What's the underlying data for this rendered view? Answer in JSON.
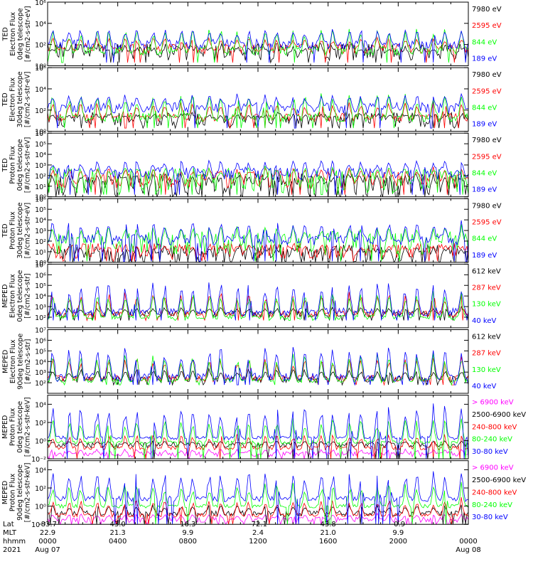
{
  "chart_data": {
    "type": "line",
    "x_range": [
      "0000",
      "0000"
    ],
    "grid": false,
    "legend_placement": "right of each panel",
    "colors": {
      "blue": "#0000ff",
      "red": "#ff0000",
      "green": "#00ff00",
      "black": "#000000",
      "magenta": "#ff00ff"
    },
    "bottom_axis": {
      "row_labels": [
        "Lat",
        "MLT",
        "hhmm",
        "2021"
      ],
      "columns": [
        {
          "Lat": "-83.7",
          "MLT": "22.9",
          "hhmm": "0000",
          "date": "Aug 07"
        },
        {
          "Lat": "43.0",
          "MLT": "21.3",
          "hhmm": "0400",
          "date": ""
        },
        {
          "Lat": "16.3",
          "MLT": "9.9",
          "hhmm": "0800",
          "date": ""
        },
        {
          "Lat": "-72.1",
          "MLT": "2.4",
          "hhmm": "1200",
          "date": ""
        },
        {
          "Lat": "43.8",
          "MLT": "21.0",
          "hhmm": "1600",
          "date": ""
        },
        {
          "Lat": "-0.9",
          "MLT": "9.9",
          "hhmm": "2000",
          "date": ""
        },
        {
          "Lat": "",
          "MLT": "",
          "hhmm": "0000",
          "date": "Aug 08"
        }
      ]
    },
    "panels": [
      {
        "ylabel": [
          "TED",
          "Electron Flux",
          "0deg telescope",
          "[#/cm2-s-str-eV]"
        ],
        "log_range": [
          0,
          6
        ],
        "ticks": [
          {
            "exp": 0,
            "label": "10⁰"
          },
          {
            "exp": 2,
            "label": "10²"
          },
          {
            "exp": 4,
            "label": "10⁴"
          },
          {
            "exp": 6,
            "label": "10⁶"
          }
        ],
        "baseline": 1.5,
        "floor": 0.3,
        "series": [
          {
            "name": "7980 eV",
            "color": "black",
            "base": 1.3,
            "peak": 1.6,
            "spread": 0.8
          },
          {
            "name": "2595 eV",
            "color": "red",
            "base": 1.6,
            "peak": 2.7,
            "spread": 0.5
          },
          {
            "name": "844 eV",
            "color": "green",
            "base": 1.4,
            "peak": 3.6,
            "spread": 0.4
          },
          {
            "name": "189 eV",
            "color": "blue",
            "base": 2.0,
            "peak": 3.6,
            "spread": 0.5
          }
        ]
      },
      {
        "ylabel": [
          "TED",
          "Electron Flux",
          "30deg telescope",
          "[#/cm2-s-str-eV]"
        ],
        "log_range": [
          0,
          6
        ],
        "ticks": [
          {
            "exp": 0,
            "label": "10⁰"
          },
          {
            "exp": 2,
            "label": "10²"
          },
          {
            "exp": 4,
            "label": "10⁴"
          },
          {
            "exp": 6,
            "label": "10⁶"
          }
        ],
        "baseline": 1.2,
        "floor": 0.3,
        "series": [
          {
            "name": "7980 eV",
            "color": "black",
            "base": 1.1,
            "peak": 1.7,
            "spread": 0.7
          },
          {
            "name": "2595 eV",
            "color": "red",
            "base": 1.3,
            "peak": 2.8,
            "spread": 0.4
          },
          {
            "name": "844 eV",
            "color": "green",
            "base": 1.3,
            "peak": 3.6,
            "spread": 0.4
          },
          {
            "name": "189 eV",
            "color": "blue",
            "base": 2.2,
            "peak": 3.6,
            "spread": 0.5
          }
        ]
      },
      {
        "ylabel": [
          "TED",
          "Proton Flux",
          "0deg telescope",
          "[#/cm2-s-str-eV]"
        ],
        "log_range": [
          0,
          6
        ],
        "ticks": [
          {
            "exp": 0,
            "label": "10⁰"
          },
          {
            "exp": 1,
            "label": "10¹"
          },
          {
            "exp": 2,
            "label": "10²"
          },
          {
            "exp": 3,
            "label": "10³"
          },
          {
            "exp": 4,
            "label": "10⁴"
          },
          {
            "exp": 5,
            "label": "10⁵"
          },
          {
            "exp": 6,
            "label": "10⁶"
          }
        ],
        "baseline": 2.0,
        "floor": 0.2,
        "series": [
          {
            "name": "7980 eV",
            "color": "black",
            "base": 1.0,
            "peak": 2.2,
            "spread": 1.2
          },
          {
            "name": "2595 eV",
            "color": "red",
            "base": 1.6,
            "peak": 2.8,
            "spread": 0.8
          },
          {
            "name": "844 eV",
            "color": "green",
            "base": 1.5,
            "peak": 3.0,
            "spread": 1.2
          },
          {
            "name": "189 eV",
            "color": "blue",
            "base": 2.2,
            "peak": 3.5,
            "spread": 0.6
          }
        ]
      },
      {
        "ylabel": [
          "TED",
          "Proton Flux",
          "30deg telescope",
          "[#/cm2-s-str-eV]"
        ],
        "log_range": [
          0,
          6
        ],
        "ticks": [
          {
            "exp": 0,
            "label": "10⁰"
          },
          {
            "exp": 1,
            "label": "10¹"
          },
          {
            "exp": 2,
            "label": "10²"
          },
          {
            "exp": 3,
            "label": "10³"
          },
          {
            "exp": 4,
            "label": "10⁴"
          },
          {
            "exp": 5,
            "label": "10⁵"
          },
          {
            "exp": 6,
            "label": "10⁶"
          }
        ],
        "baseline": 2.0,
        "floor": 0.1,
        "series": [
          {
            "name": "7980 eV",
            "color": "black",
            "base": 0.7,
            "peak": 1.5,
            "spread": 1.0
          },
          {
            "name": "2595 eV",
            "color": "red",
            "base": 1.0,
            "peak": 1.6,
            "spread": 0.8
          },
          {
            "name": "844 eV",
            "color": "green",
            "base": 1.8,
            "peak": 3.5,
            "spread": 1.1
          },
          {
            "name": "189 eV",
            "color": "blue",
            "base": 2.1,
            "peak": 4.0,
            "spread": 0.5
          }
        ]
      },
      {
        "ylabel": [
          "MEPED",
          "Electron Flux",
          "0deg telescope",
          "[#/cm2-s-str]"
        ],
        "log_range": [
          1,
          7
        ],
        "ticks": [
          {
            "exp": 2,
            "label": "10²"
          },
          {
            "exp": 3,
            "label": "10³"
          },
          {
            "exp": 4,
            "label": "10⁴"
          },
          {
            "exp": 5,
            "label": "10⁵"
          },
          {
            "exp": 6,
            "label": "10⁶"
          },
          {
            "exp": 7,
            "label": "10⁷"
          }
        ],
        "baseline": 2.0,
        "floor": 1.7,
        "series": [
          {
            "name": "612 keV",
            "color": "black",
            "base": 2.3,
            "peak": 3.0,
            "spread": 0.3
          },
          {
            "name": "287 keV",
            "color": "red",
            "base": 2.3,
            "peak": 4.5,
            "spread": 0.3
          },
          {
            "name": "130 keV",
            "color": "green",
            "base": 2.0,
            "peak": 4.4,
            "spread": 0.2
          },
          {
            "name": "40 keV",
            "color": "blue",
            "base": 2.5,
            "peak": 5.5,
            "spread": 0.4
          }
        ]
      },
      {
        "ylabel": [
          "MEPED",
          "Electron Flux",
          "90deg telescope",
          "[#/cm2-s-str]"
        ],
        "log_range": [
          1,
          7
        ],
        "ticks": [
          {
            "exp": 2,
            "label": "10²"
          },
          {
            "exp": 3,
            "label": "10³"
          },
          {
            "exp": 4,
            "label": "10⁴"
          },
          {
            "exp": 5,
            "label": "10⁵"
          },
          {
            "exp": 6,
            "label": "10⁶"
          },
          {
            "exp": 7,
            "label": "10⁷"
          }
        ],
        "baseline": 2.0,
        "floor": 1.8,
        "series": [
          {
            "name": "612 keV",
            "color": "black",
            "base": 2.3,
            "peak": 3.4,
            "spread": 0.3
          },
          {
            "name": "287 keV",
            "color": "red",
            "base": 2.4,
            "peak": 4.5,
            "spread": 0.3
          },
          {
            "name": "130 keV",
            "color": "green",
            "base": 2.2,
            "peak": 4.8,
            "spread": 0.2
          },
          {
            "name": "40 keV",
            "color": "blue",
            "base": 2.5,
            "peak": 5.6,
            "spread": 0.4
          }
        ]
      },
      {
        "ylabel": [
          "MEPED",
          "Proton Flux",
          "0deg telescope",
          "[#/cm2-s-str-keV]"
        ],
        "log_range": [
          -2,
          5
        ],
        "ticks": [
          {
            "exp": -2,
            "label": "10⁻²"
          },
          {
            "exp": 0,
            "label": "10⁰"
          },
          {
            "exp": 2,
            "label": "10²"
          },
          {
            "exp": 4,
            "label": "10⁴"
          }
        ],
        "baseline": 0.3,
        "floor": -2.0,
        "series": [
          {
            "name": "> 6900 keV",
            "color": "magenta",
            "base": -1.5,
            "peak": -0.9,
            "spread": 0.3
          },
          {
            "name": "2500-6900 keV",
            "color": "black",
            "base": -0.5,
            "peak": 0.0,
            "spread": 0.3
          },
          {
            "name": "240-800 keV",
            "color": "red",
            "base": -0.8,
            "peak": 0.8,
            "spread": 0.2
          },
          {
            "name": "80-240 keV",
            "color": "green",
            "base": -0.2,
            "peak": 2.5,
            "spread": 0.2
          },
          {
            "name": "30-80 keV",
            "color": "blue",
            "base": 0.3,
            "peak": 4.0,
            "spread": 0.2
          }
        ]
      },
      {
        "ylabel": [
          "MEPED",
          "Proton Flux",
          "90deg telescope",
          "[#/cm2-s-str-keV]"
        ],
        "log_range": [
          -2,
          5
        ],
        "ticks": [
          {
            "exp": -2,
            "label": "10⁻²"
          },
          {
            "exp": 0,
            "label": "10⁰"
          },
          {
            "exp": 2,
            "label": "10²"
          },
          {
            "exp": 4,
            "label": "10⁴"
          }
        ],
        "baseline": 0.3,
        "floor": -2.0,
        "series": [
          {
            "name": "> 6900 keV",
            "color": "magenta",
            "base": -1.5,
            "peak": -0.8,
            "spread": 0.3
          },
          {
            "name": "2500-6900 keV",
            "color": "black",
            "base": -0.8,
            "peak": 0.2,
            "spread": 0.3
          },
          {
            "name": "240-800 keV",
            "color": "red",
            "base": -1.0,
            "peak": 0.9,
            "spread": 0.2
          },
          {
            "name": "80-240 keV",
            "color": "green",
            "base": 0.0,
            "peak": 2.6,
            "spread": 0.2
          },
          {
            "name": "30-80 keV",
            "color": "blue",
            "base": 0.8,
            "peak": 4.0,
            "spread": 0.3
          }
        ]
      }
    ]
  }
}
